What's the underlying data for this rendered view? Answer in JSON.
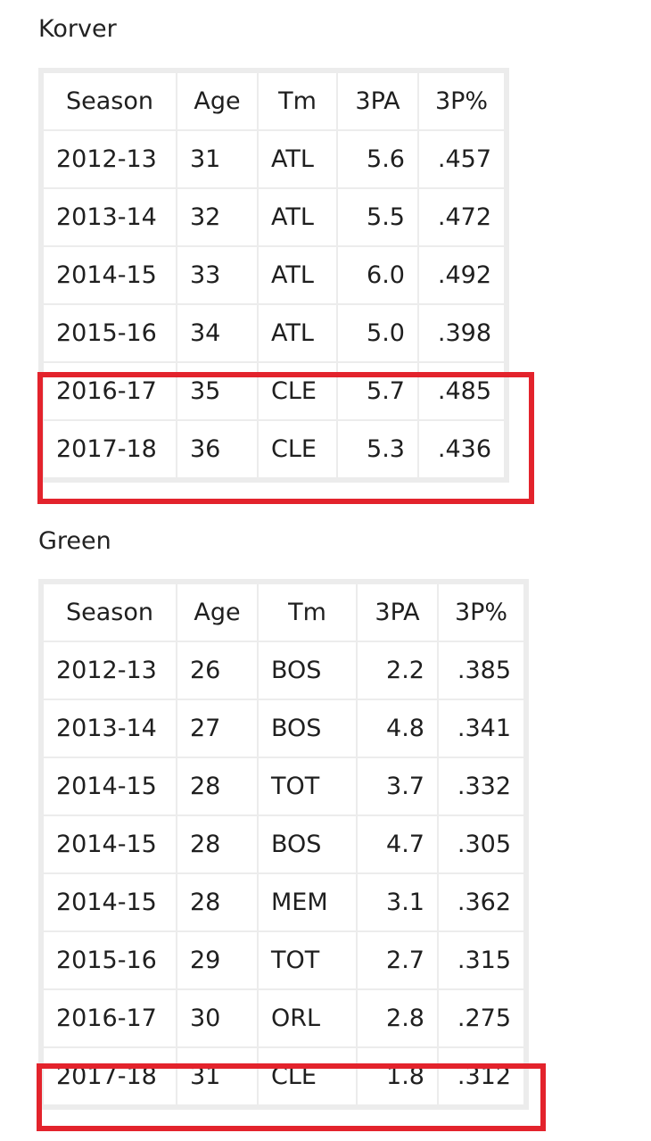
{
  "korver": {
    "label": "Korver",
    "headers": [
      "Season",
      "Age",
      "Tm",
      "3PA",
      "3P%"
    ],
    "rows": [
      [
        "2012-13",
        "31",
        "ATL",
        "5.6",
        ".457"
      ],
      [
        "2013-14",
        "32",
        "ATL",
        "5.5",
        ".472"
      ],
      [
        "2014-15",
        "33",
        "ATL",
        "6.0",
        ".492"
      ],
      [
        "2015-16",
        "34",
        "ATL",
        "5.0",
        ".398"
      ],
      [
        "2016-17",
        "35",
        "CLE",
        "5.7",
        ".485"
      ],
      [
        "2017-18",
        "36",
        "CLE",
        "5.3",
        ".436"
      ]
    ],
    "highlighted_rows": [
      "2016-17",
      "2017-18"
    ]
  },
  "green": {
    "label": "Green",
    "headers": [
      "Season",
      "Age",
      "Tm",
      "3PA",
      "3P%"
    ],
    "rows": [
      [
        "2012-13",
        "26",
        "BOS",
        "2.2",
        ".385"
      ],
      [
        "2013-14",
        "27",
        "BOS",
        "4.8",
        ".341"
      ],
      [
        "2014-15",
        "28",
        "TOT",
        "3.7",
        ".332"
      ],
      [
        "2014-15",
        "28",
        "BOS",
        "4.7",
        ".305"
      ],
      [
        "2014-15",
        "28",
        "MEM",
        "3.1",
        ".362"
      ],
      [
        "2015-16",
        "29",
        "TOT",
        "2.7",
        ".315"
      ],
      [
        "2016-17",
        "30",
        "ORL",
        "2.8",
        ".275"
      ],
      [
        "2017-18",
        "31",
        "CLE",
        "1.8",
        ".312"
      ]
    ],
    "highlighted_rows": [
      "2017-18"
    ]
  },
  "colors": {
    "highlight_border": "#e3232c",
    "table_border": "#ececec",
    "text": "#1f1f1f"
  }
}
